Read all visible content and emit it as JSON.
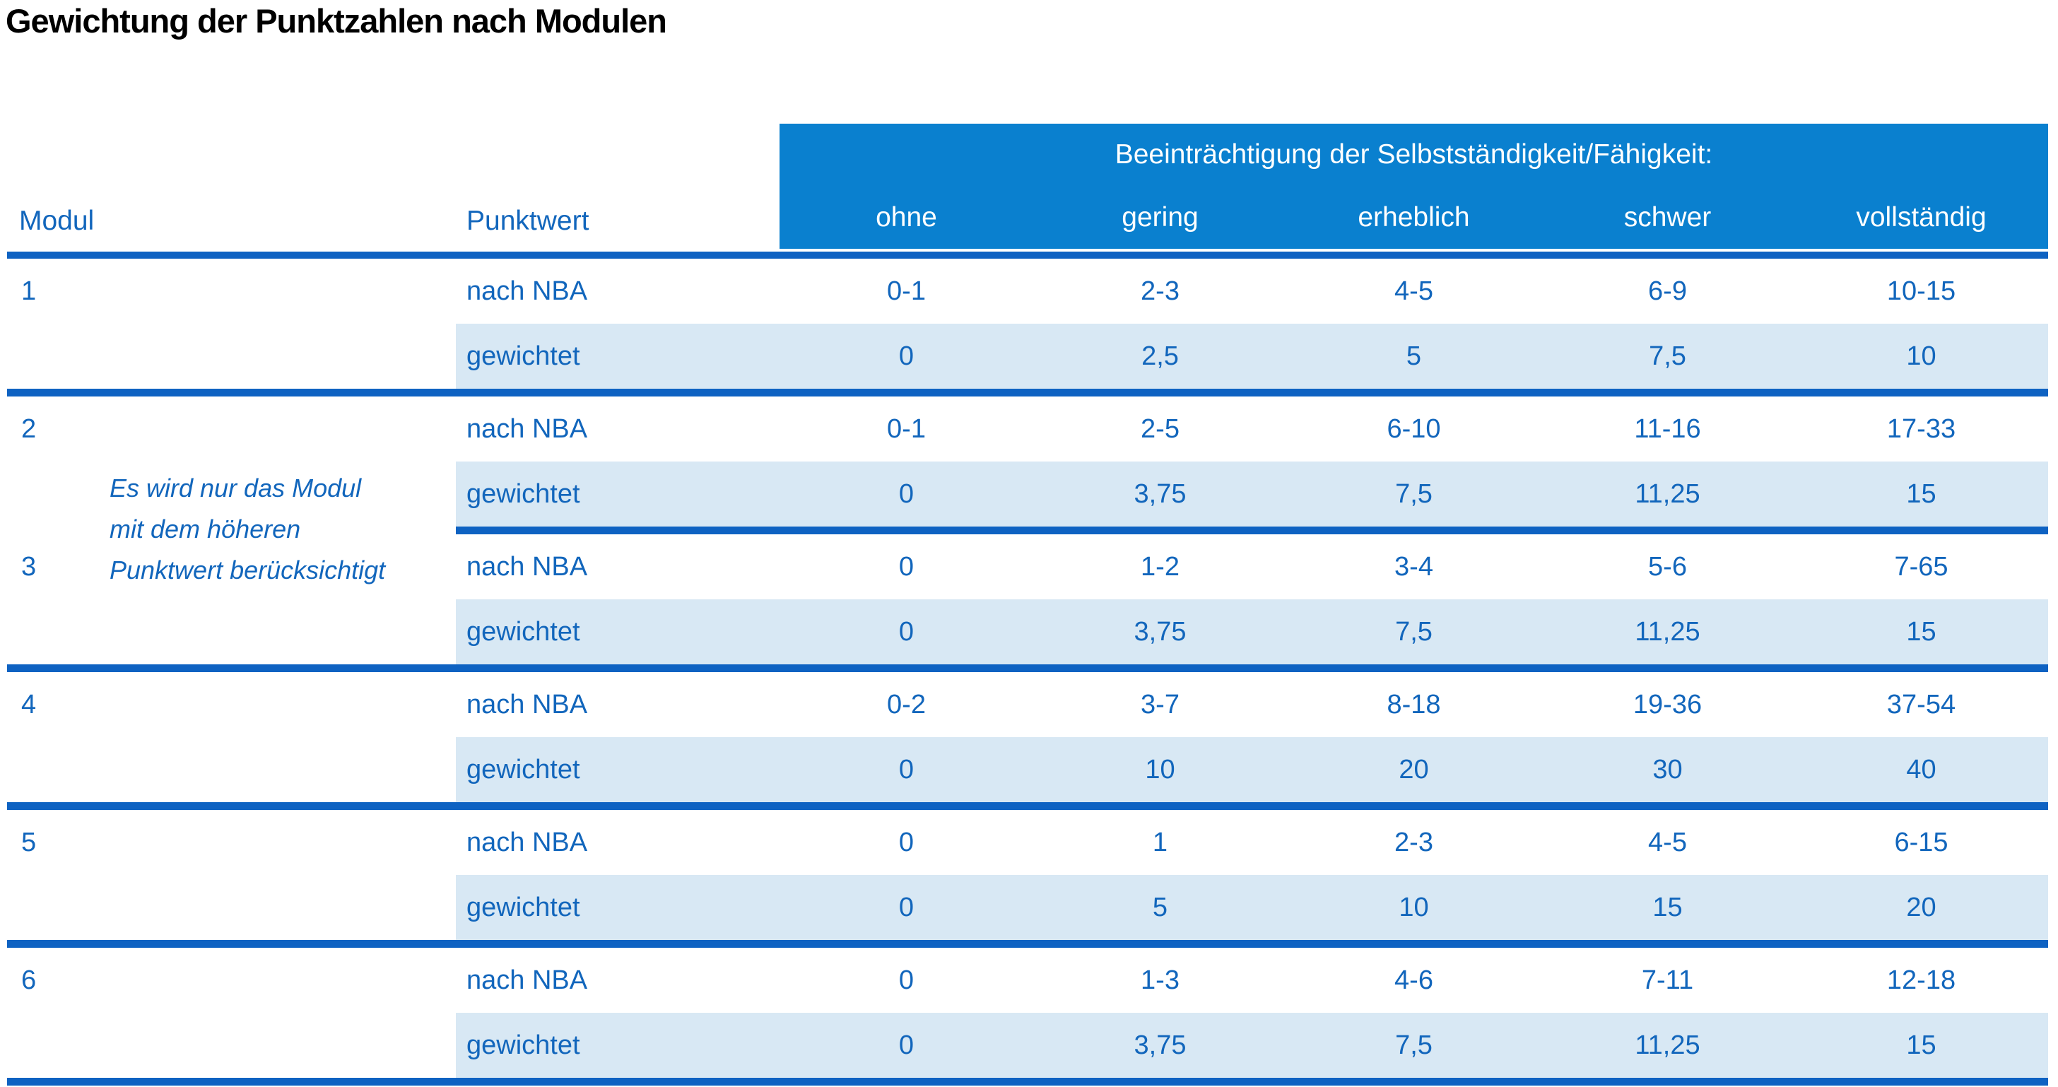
{
  "title": "Gewichtung der Punktzahlen nach Modulen",
  "colors": {
    "header_bg": "#0a80cf",
    "separator_line": "#0e62c2",
    "text_blue": "#1266bc",
    "row_shade": "#d8e8f4",
    "title_color": "#000000"
  },
  "table": {
    "modul_header": "Modul",
    "punktwert_header": "Punktwert",
    "impairment_header": "Beeinträchtigung der Selbstständigkeit/Fähigkeit:",
    "severity_columns": [
      "ohne",
      "gering",
      "erheblich",
      "schwer",
      "vollständig"
    ],
    "row_labels": {
      "nba": "nach NBA",
      "weighted": "gewichtet"
    },
    "note": "Es wird nur das Modul\nmit dem höheren\nPunktwert berücksichtigt",
    "modules": [
      {
        "modul": "1",
        "nach_nba": [
          "0-1",
          "2-3",
          "4-5",
          "6-9",
          "10-15"
        ],
        "gewichtet": [
          "0",
          "2,5",
          "5",
          "7,5",
          "10"
        ]
      },
      {
        "modul": "2",
        "nach_nba": [
          "0-1",
          "2-5",
          "6-10",
          "11-16",
          "17-33"
        ],
        "gewichtet": [
          "0",
          "3,75",
          "7,5",
          "11,25",
          "15"
        ]
      },
      {
        "modul": "3",
        "nach_nba": [
          "0",
          "1-2",
          "3-4",
          "5-6",
          "7-65"
        ],
        "gewichtet": [
          "0",
          "3,75",
          "7,5",
          "11,25",
          "15"
        ]
      },
      {
        "modul": "4",
        "nach_nba": [
          "0-2",
          "3-7",
          "8-18",
          "19-36",
          "37-54"
        ],
        "gewichtet": [
          "0",
          "10",
          "20",
          "30",
          "40"
        ]
      },
      {
        "modul": "5",
        "nach_nba": [
          "0",
          "1",
          "2-3",
          "4-5",
          "6-15"
        ],
        "gewichtet": [
          "0",
          "5",
          "10",
          "15",
          "20"
        ]
      },
      {
        "modul": "6",
        "nach_nba": [
          "0",
          "1-3",
          "4-6",
          "7-11",
          "12-18"
        ],
        "gewichtet": [
          "0",
          "3,75",
          "7,5",
          "11,25",
          "15"
        ]
      }
    ]
  }
}
